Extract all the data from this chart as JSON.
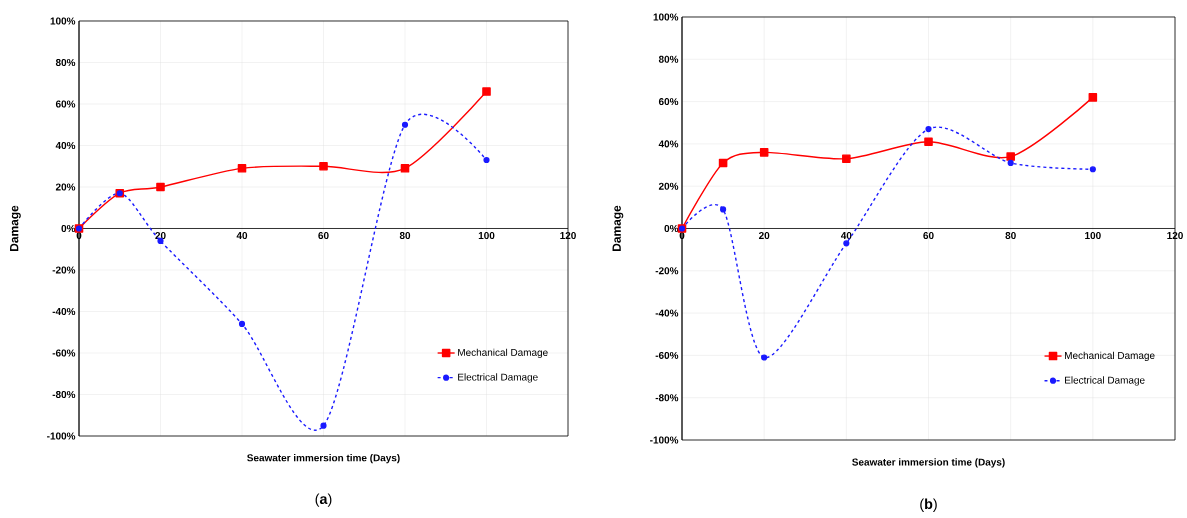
{
  "chart_data": [
    {
      "type": "line",
      "xlabel": "Seawater immersion time (Days)",
      "ylabel": "Damage",
      "annotations": [
        "(**a**)"
      ],
      "x": [
        0,
        10,
        20,
        40,
        60,
        80,
        100
      ],
      "series": [
        {
          "name": "Mechanical Damage",
          "color": "#ff0000",
          "marker": "square",
          "line_style": "solid",
          "values": [
            0,
            17,
            20,
            29,
            30,
            29,
            66
          ]
        },
        {
          "name": "Electrical Damage",
          "color": "#1a1aff",
          "marker": "circle",
          "line_style": "dashed",
          "values": [
            0,
            17,
            -6,
            -46,
            -95,
            50,
            33
          ]
        }
      ],
      "xlim": [
        0,
        120
      ],
      "ylim": [
        -100,
        100
      ],
      "xticks": [
        0,
        20,
        40,
        60,
        80,
        100,
        120
      ],
      "yticks": [
        {
          "value": -100,
          "label": "-100%"
        },
        {
          "value": -80,
          "label": "-80%"
        },
        {
          "value": -60,
          "label": "-60%"
        },
        {
          "value": -40,
          "label": "-40%"
        },
        {
          "value": -20,
          "label": "-20%"
        },
        {
          "value": 0,
          "label": "0%"
        },
        {
          "value": 20,
          "label": "20%"
        },
        {
          "value": 40,
          "label": "40%"
        },
        {
          "value": 60,
          "label": "60%"
        },
        {
          "value": 80,
          "label": "80%"
        },
        {
          "value": 100,
          "label": "100%"
        }
      ],
      "grid": true,
      "legend": "bottom right"
    },
    {
      "type": "line",
      "xlabel": "Seawater immersion time (Days)",
      "ylabel": "Damage",
      "annotations": [
        "(**b**)"
      ],
      "x": [
        0,
        10,
        20,
        40,
        60,
        80,
        100
      ],
      "series": [
        {
          "name": "Mechanical Damage",
          "color": "#ff0000",
          "marker": "square",
          "line_style": "solid",
          "values": [
            0,
            31,
            36,
            33,
            41,
            34,
            62
          ]
        },
        {
          "name": "Electrical Damage",
          "color": "#1a1aff",
          "marker": "circle",
          "line_style": "dashed",
          "values": [
            0,
            9,
            -61,
            -7,
            47,
            31,
            28
          ]
        }
      ],
      "xlim": [
        0,
        120
      ],
      "ylim": [
        -100,
        100
      ],
      "xticks": [
        0,
        20,
        40,
        60,
        80,
        100,
        120
      ],
      "yticks": [
        {
          "value": -100,
          "label": "-100%"
        },
        {
          "value": -80,
          "label": "-80%"
        },
        {
          "value": -60,
          "label": "-60%"
        },
        {
          "value": -40,
          "label": "-40%"
        },
        {
          "value": -20,
          "label": "-20%"
        },
        {
          "value": 0,
          "label": "0%"
        },
        {
          "value": 20,
          "label": "20%"
        },
        {
          "value": 40,
          "label": "40%"
        },
        {
          "value": 60,
          "label": "60%"
        },
        {
          "value": 80,
          "label": "80%"
        },
        {
          "value": 100,
          "label": "100%"
        }
      ],
      "grid": true,
      "legend": "bottom right"
    }
  ]
}
